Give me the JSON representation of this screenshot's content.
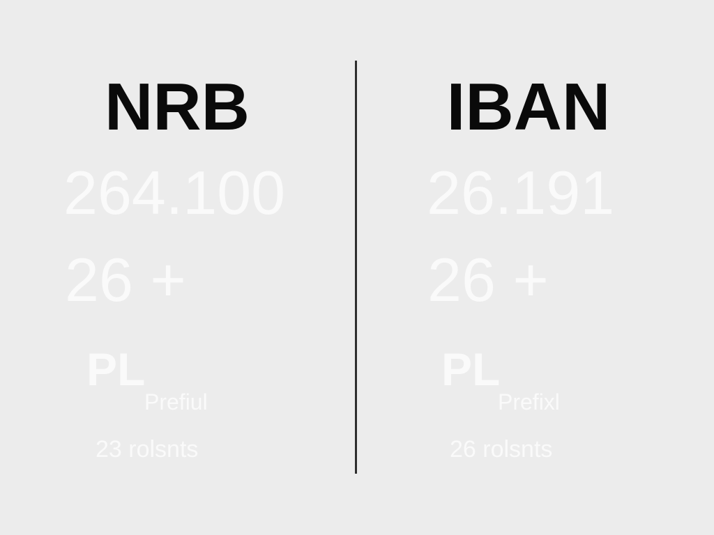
{
  "columns": [
    {
      "title": "NRB",
      "number": "264.100",
      "length_expr": "26 +",
      "prefix": "PL",
      "prefix_label": "Prefiul",
      "count_label": "23 rolsnts"
    },
    {
      "title": "IBAN",
      "number": "26.191",
      "length_expr": "26 +",
      "prefix": "PL",
      "prefix_label": "Prefixl",
      "count_label": "26 rolsnts"
    }
  ],
  "colors": {
    "background": "#ececec",
    "title": "#0a0a0a",
    "faded_text": "#fafafa",
    "divider": "#2e2e2e"
  }
}
